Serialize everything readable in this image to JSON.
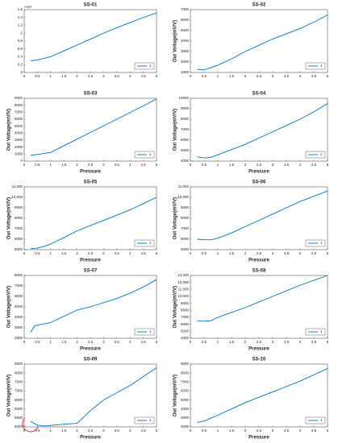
{
  "chart_data": [
    {
      "type": "line",
      "title": "SS-01",
      "y_exponent_label": "×10⁴",
      "x": [
        0.25,
        0.5,
        1,
        1.5,
        2,
        2.5,
        3,
        3.5,
        4,
        4.5,
        5
      ],
      "series": [
        {
          "name": "1",
          "color": "#0072bd",
          "values": [
            0.3,
            0.32,
            0.4,
            0.55,
            0.7,
            0.85,
            1.0,
            1.14,
            1.27,
            1.4,
            1.52
          ]
        }
      ],
      "xlim": [
        0,
        5
      ],
      "xticks": [
        0,
        0.5,
        1,
        1.5,
        2,
        2.5,
        3,
        3.5,
        4,
        4.5,
        5
      ],
      "ylim": [
        0,
        1.6
      ],
      "yticks": [
        0,
        0.2,
        0.4,
        0.6,
        0.8,
        1,
        1.2,
        1.4,
        1.6
      ],
      "legend": "lower right"
    },
    {
      "type": "line",
      "title": "SS-02",
      "ylabel": "Out Voltage(mV/V)",
      "x": [
        0.25,
        0.5,
        1,
        1.5,
        2,
        2.5,
        3,
        3.5,
        4,
        4.5,
        5
      ],
      "series": [
        {
          "name": "1",
          "color": "#0072bd",
          "values": [
            1300,
            1250,
            1700,
            2300,
            3000,
            3600,
            4200,
            4700,
            5200,
            5800,
            6500
          ]
        }
      ],
      "xlim": [
        0,
        5
      ],
      "xticks": [
        0,
        0.5,
        1,
        1.5,
        2,
        2.5,
        3,
        3.5,
        4,
        4.5,
        5
      ],
      "ylim": [
        1000,
        7000
      ],
      "yticks": [
        1000,
        2000,
        3000,
        4000,
        5000,
        6000,
        7000
      ],
      "legend": "lower right"
    },
    {
      "type": "line",
      "title": "SS-03",
      "xlabel": "Pressure",
      "ylabel": "Out Voltage(mV/V)",
      "x": [
        0.25,
        0.5,
        1,
        1.5,
        2,
        2.5,
        3,
        3.5,
        4,
        4.5,
        5
      ],
      "series": [
        {
          "name": "1",
          "color": "#0072bd",
          "values": [
            850,
            950,
            1250,
            2200,
            3150,
            4100,
            5050,
            6000,
            6950,
            7900,
            8900
          ]
        }
      ],
      "xlim": [
        0,
        5
      ],
      "xticks": [
        0,
        0.5,
        1,
        1.5,
        2,
        2.5,
        3,
        3.5,
        4,
        4.5,
        5
      ],
      "ylim": [
        0,
        9000
      ],
      "yticks": [
        0,
        1000,
        2000,
        3000,
        4000,
        5000,
        6000,
        7000,
        8000,
        9000
      ],
      "legend": "lower right"
    },
    {
      "type": "line",
      "title": "SS-04",
      "xlabel": "Pressure",
      "ylabel": "Out Voltage(mV/V)",
      "x": [
        0.25,
        0.5,
        0.75,
        1,
        1.5,
        2,
        2.5,
        3,
        3.5,
        4,
        4.5,
        5
      ],
      "series": [
        {
          "name": "1",
          "color": "#0072bd",
          "values": [
            4400,
            4300,
            4350,
            4600,
            5100,
            5600,
            6200,
            6800,
            7400,
            8000,
            8700,
            9500
          ]
        }
      ],
      "xlim": [
        0,
        5
      ],
      "xticks": [
        0,
        0.5,
        1,
        1.5,
        2,
        2.5,
        3,
        3.5,
        4,
        4.5,
        5
      ],
      "ylim": [
        4000,
        10000
      ],
      "yticks": [
        4000,
        5000,
        6000,
        7000,
        8000,
        9000,
        10000
      ],
      "legend": "lower right"
    },
    {
      "type": "line",
      "title": "SS-05",
      "xlabel": "Pressure",
      "ylabel": "Out Voltage(mV/V)",
      "x": [
        0.25,
        0.5,
        0.75,
        1,
        1.5,
        2,
        2.5,
        3,
        3.5,
        4,
        4.5,
        5
      ],
      "series": [
        {
          "name": "1",
          "color": "#0072bd",
          "values": [
            5100,
            5150,
            5300,
            5550,
            6150,
            6800,
            7300,
            7800,
            8300,
            8800,
            9400,
            10000
          ]
        }
      ],
      "xlim": [
        0,
        5
      ],
      "xticks": [
        0,
        0.5,
        1,
        1.5,
        2,
        2.5,
        3,
        3.5,
        4,
        4.5,
        5
      ],
      "ylim": [
        5000,
        11000
      ],
      "yticks": [
        5000,
        6000,
        7000,
        8000,
        9000,
        {
          "value": 10000,
          "label": "10,000"
        },
        {
          "value": 11000,
          "label": "11,000"
        }
      ],
      "legend": "lower right"
    },
    {
      "type": "line",
      "title": "SS-06",
      "xlabel": "Pressure",
      "ylabel": "Out Voltage(mV/V)",
      "x": [
        0.25,
        0.5,
        0.75,
        1,
        1.5,
        2,
        2.5,
        3,
        3.5,
        4,
        4.5,
        5
      ],
      "series": [
        {
          "name": "1",
          "color": "#0072bd",
          "values": [
            6000,
            5950,
            5950,
            6100,
            6600,
            7200,
            7800,
            8400,
            9000,
            9600,
            10100,
            10600
          ]
        }
      ],
      "xlim": [
        0,
        5
      ],
      "xticks": [
        0,
        0.5,
        1,
        1.5,
        2,
        2.5,
        3,
        3.5,
        4,
        4.5,
        5
      ],
      "ylim": [
        5000,
        11000
      ],
      "yticks": [
        5000,
        6000,
        7000,
        8000,
        9000,
        {
          "value": 10000,
          "label": "10,000"
        },
        {
          "value": 11000,
          "label": "11,000"
        }
      ],
      "legend": "lower right"
    },
    {
      "type": "line",
      "title": "SS-07",
      "xlabel": "Pressure",
      "ylabel": "Out Voltage(mV/V)",
      "x": [
        0.25,
        0.4,
        0.6,
        1,
        1.5,
        2,
        2.5,
        3,
        3.5,
        4,
        4.5,
        5
      ],
      "series": [
        {
          "name": "1",
          "color": "#0072bd",
          "values": [
            2600,
            3200,
            3300,
            3500,
            4100,
            4700,
            5000,
            5400,
            5800,
            6300,
            6900,
            7600
          ]
        }
      ],
      "xlim": [
        0,
        5
      ],
      "xticks": [
        0,
        0.5,
        1,
        1.5,
        2,
        2.5,
        3,
        3.5,
        4,
        4.5,
        5
      ],
      "ylim": [
        2000,
        8000
      ],
      "yticks": [
        2000,
        3000,
        4000,
        5000,
        6000,
        7000,
        8000
      ],
      "legend": "lower right"
    },
    {
      "type": "line",
      "title": "SS-08",
      "xlabel": "Pressure",
      "ylabel": "Out Voltage(mV/V)",
      "x": [
        0.25,
        0.5,
        0.75,
        1,
        1.5,
        2,
        2.5,
        3,
        3.5,
        4,
        4.5,
        5
      ],
      "series": [
        {
          "name": "1",
          "color": "#0072bd",
          "values": [
            6500,
            6450,
            6500,
            7000,
            7700,
            8400,
            9200,
            10000,
            10800,
            11600,
            12300,
            13000
          ]
        }
      ],
      "xlim": [
        0,
        5
      ],
      "xticks": [
        0,
        0.5,
        1,
        1.5,
        2,
        2.5,
        3,
        3.5,
        4,
        4.5,
        5
      ],
      "ylim": [
        4000,
        13000
      ],
      "yticks": [
        4000,
        5000,
        6000,
        7000,
        8000,
        9000,
        {
          "value": 10000,
          "label": "10,000"
        },
        {
          "value": 11000,
          "label": "11,000"
        },
        {
          "value": 12000,
          "label": "12,000"
        },
        {
          "value": 13000,
          "label": "13,000"
        }
      ],
      "legend": "lower right"
    },
    {
      "type": "line",
      "title": "SS-09",
      "xlabel": "Pressure",
      "ylabel": "Out Voltage(mV/V)",
      "x": [
        0.25,
        0.5,
        0.75,
        1,
        1.5,
        2,
        2.5,
        3,
        3.5,
        4,
        4.5,
        5
      ],
      "series": [
        {
          "name": "1",
          "color": "#0072bd",
          "values": [
            5300,
            5100,
            5050,
            5080,
            5150,
            5200,
            5900,
            6500,
            6900,
            7300,
            7800,
            8300
          ]
        }
      ],
      "xlim": [
        0,
        5
      ],
      "xticks": [
        0,
        0.5,
        1,
        1.5,
        2,
        2.5,
        3,
        3.5,
        4,
        4.5,
        5
      ],
      "ylim": [
        5000,
        8500
      ],
      "yticks": [
        5000,
        5500,
        6000,
        6500,
        7000,
        7500,
        8000,
        8500
      ],
      "legend": "lower right"
    },
    {
      "type": "line",
      "title": "SS-10",
      "xlabel": "Pressure",
      "ylabel": "Out Voltage(mV/V)",
      "x": [
        0.25,
        0.5,
        1,
        1.5,
        2,
        2.5,
        3,
        3.5,
        4,
        4.5,
        5
      ],
      "series": [
        {
          "name": "1",
          "color": "#0072bd",
          "values": [
            2500,
            2650,
            3300,
            4000,
            4700,
            5300,
            5900,
            6500,
            7100,
            7800,
            8500
          ]
        }
      ],
      "xlim": [
        0,
        5
      ],
      "xticks": [
        0,
        0.5,
        1,
        1.5,
        2,
        2.5,
        3,
        3.5,
        4,
        4.5,
        5
      ],
      "ylim": [
        2000,
        9000
      ],
      "yticks": [
        2000,
        3000,
        4000,
        5000,
        6000,
        7000,
        8000,
        9000
      ],
      "legend": "lower right"
    }
  ]
}
